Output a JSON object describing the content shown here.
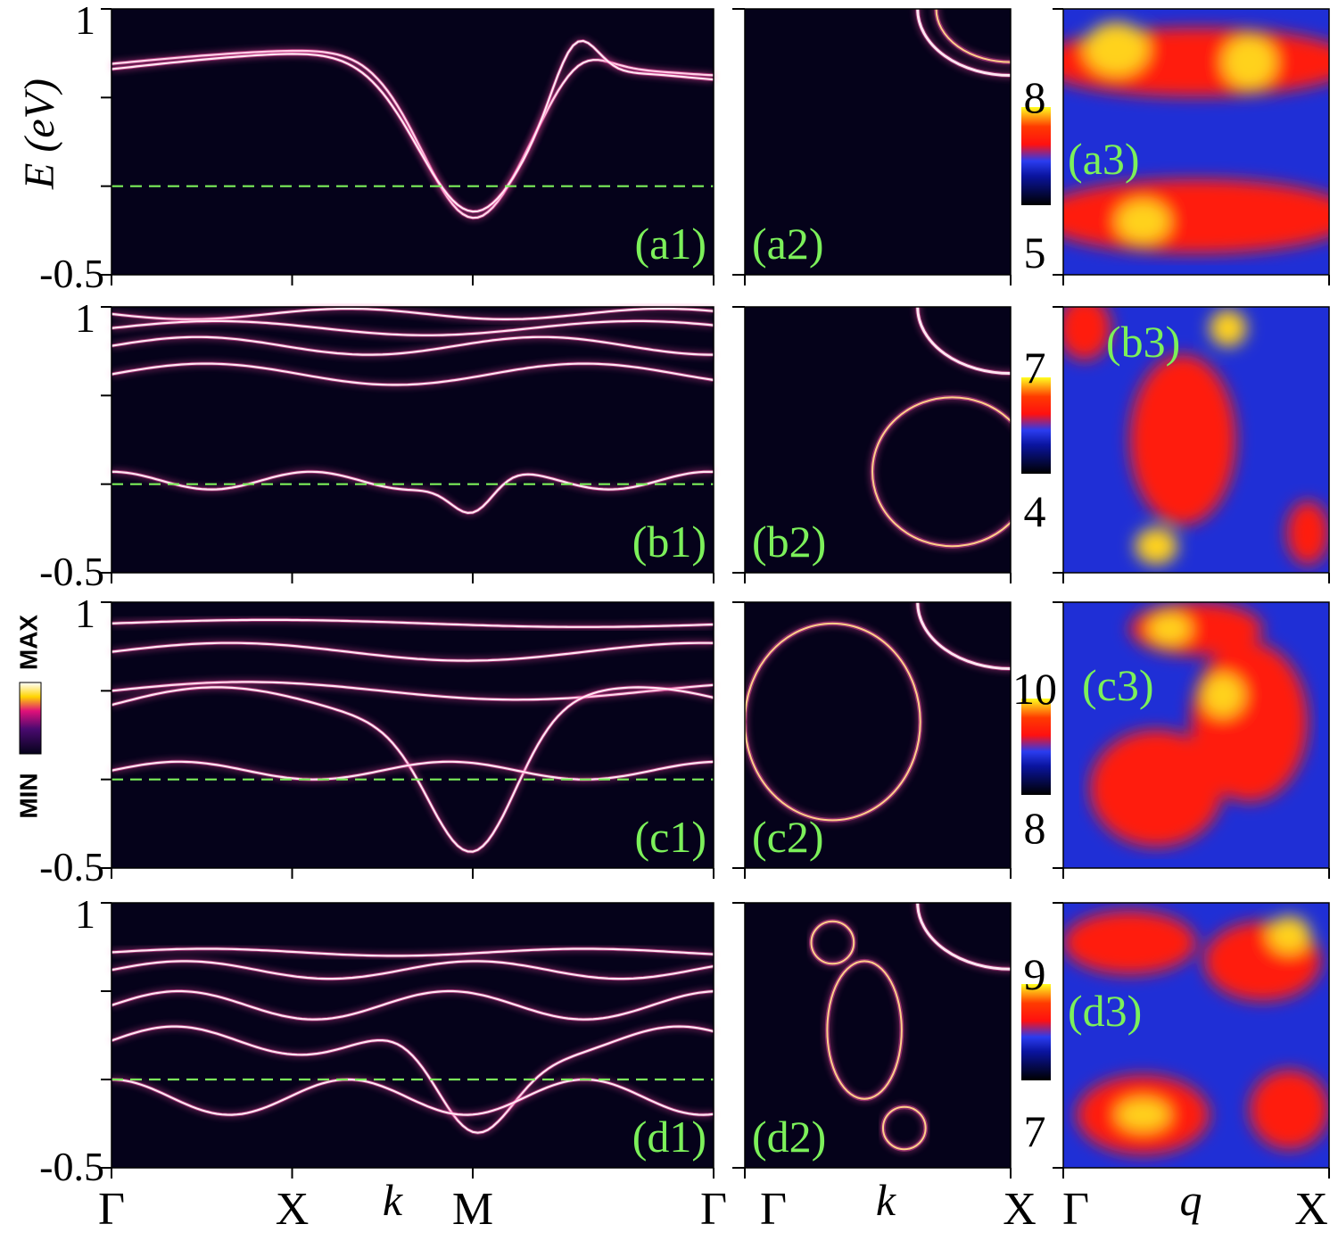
{
  "chart_data": {
    "type": "heatmap",
    "band_structure": {
      "ylabel": "E (eV)",
      "xlabel": "k",
      "yticks": [
        "1",
        "-0.5"
      ],
      "ylim": [
        -0.5,
        1
      ],
      "xticks": [
        "Γ",
        "X",
        "M",
        "Γ"
      ],
      "fermi_level": 0,
      "panels": [
        "(a1)",
        "(b1)",
        "(c1)",
        "(d1)"
      ]
    },
    "fermi_surface": {
      "xlabel": "k",
      "xticks": [
        "Γ",
        "X"
      ],
      "panels": [
        "(a2)",
        "(b2)",
        "(c2)",
        "(d2)"
      ]
    },
    "susceptibility": {
      "xlabel": "q",
      "xticks": [
        "Γ",
        "X"
      ],
      "panels": [
        {
          "label": "(a3)",
          "colorbar": [
            "8",
            "5"
          ]
        },
        {
          "label": "(b3)",
          "colorbar": [
            "7",
            "4"
          ]
        },
        {
          "label": "(c3)",
          "colorbar": [
            "10",
            "8"
          ]
        },
        {
          "label": "(d3)",
          "colorbar": [
            "9",
            "7"
          ]
        }
      ]
    },
    "intensity_colorbar": {
      "max_label": "MAX",
      "min_label": "MIN"
    }
  },
  "colors": {
    "background": "#05021a",
    "band": "#ffe7f2",
    "band_glow": "#ff4fa8",
    "fermi_line": "#7cf05a",
    "label": "#7cf05a"
  }
}
